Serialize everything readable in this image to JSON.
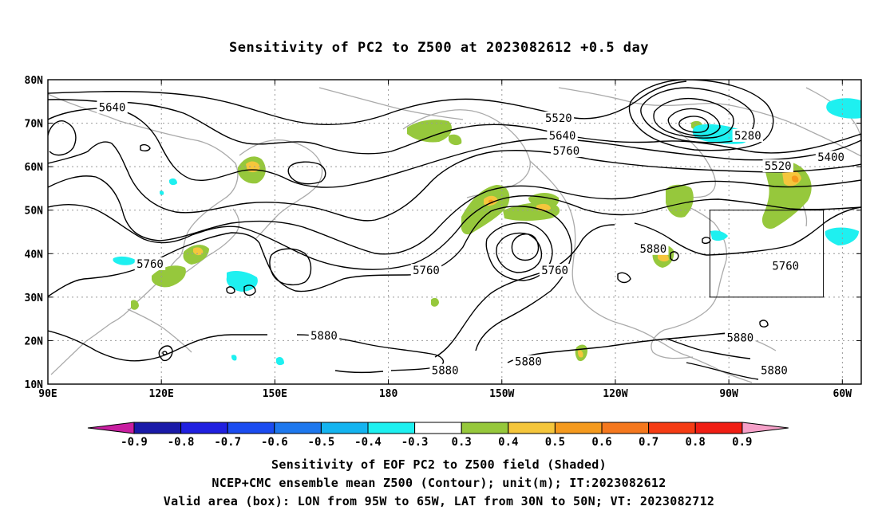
{
  "chart_data": {
    "type": "heatmap",
    "title": "Sensitivity of PC2 to Z500 at 2023082612 +0.5 day",
    "projection": "lat-lon",
    "lat_range": [
      10,
      80
    ],
    "lon_range": [
      90,
      305
    ],
    "lat_ticks": [
      {
        "value": 80,
        "label": "80N"
      },
      {
        "value": 70,
        "label": "70N"
      },
      {
        "value": 60,
        "label": "60N"
      },
      {
        "value": 50,
        "label": "50N"
      },
      {
        "value": 40,
        "label": "40N"
      },
      {
        "value": 30,
        "label": "30N"
      },
      {
        "value": 20,
        "label": "20N"
      },
      {
        "value": 10,
        "label": "10N"
      }
    ],
    "lon_ticks": [
      {
        "value": 90,
        "label": "90E"
      },
      {
        "value": 120,
        "label": "120E"
      },
      {
        "value": 150,
        "label": "150E"
      },
      {
        "value": 180,
        "label": "180"
      },
      {
        "value": 210,
        "label": "150W"
      },
      {
        "value": 240,
        "label": "120W"
      },
      {
        "value": 270,
        "label": "90W"
      },
      {
        "value": 300,
        "label": "60W"
      }
    ],
    "grid": true,
    "colorbar": {
      "labels": [
        "-0.9",
        "-0.8",
        "-0.7",
        "-0.6",
        "-0.5",
        "-0.4",
        "-0.3",
        "0.3",
        "0.4",
        "0.5",
        "0.6",
        "0.7",
        "0.8",
        "0.9"
      ],
      "colors": [
        "#1a1aa8",
        "#2020e0",
        "#1b4cf0",
        "#1e78ee",
        "#14b4f0",
        "#1ef0f0",
        "#ffffff",
        "#96c83c",
        "#f5c63c",
        "#f59a1e",
        "#f5781e",
        "#f53c14",
        "#f01e14"
      ],
      "under_color": "#c81ea0",
      "over_color": "#f5a0c8"
    },
    "contour_labels": [
      {
        "text": "5640",
        "lon": 107,
        "lat": 73.5
      },
      {
        "text": "5520",
        "lon": 225,
        "lat": 71
      },
      {
        "text": "5640",
        "lon": 226,
        "lat": 67
      },
      {
        "text": "5760",
        "lon": 227,
        "lat": 63.5
      },
      {
        "text": "5280",
        "lon": 275,
        "lat": 67
      },
      {
        "text": "5400",
        "lon": 297,
        "lat": 62
      },
      {
        "text": "5520",
        "lon": 283,
        "lat": 60
      },
      {
        "text": "5760",
        "lon": 117,
        "lat": 37.5
      },
      {
        "text": "5760",
        "lon": 190,
        "lat": 36
      },
      {
        "text": "5760",
        "lon": 224,
        "lat": 36
      },
      {
        "text": "5880",
        "lon": 250,
        "lat": 41
      },
      {
        "text": "5760",
        "lon": 285,
        "lat": 37
      },
      {
        "text": "5880",
        "lon": 163,
        "lat": 21
      },
      {
        "text": "5880",
        "lon": 195,
        "lat": 13
      },
      {
        "text": "5880",
        "lon": 217,
        "lat": 15
      },
      {
        "text": "5880",
        "lon": 273,
        "lat": 20.5
      },
      {
        "text": "5880",
        "lon": 282,
        "lat": 13
      }
    ],
    "valid_box": {
      "lon": [
        265,
        295
      ],
      "lat": [
        30,
        50
      ]
    }
  },
  "captions": {
    "line1": "Sensitivity of EOF PC2 to Z500 field (Shaded)",
    "line2": "NCEP+CMC ensemble mean Z500 (Contour); unit(m); IT:2023082612",
    "line3": "Valid area (box): LON from 95W to 65W, LAT from 30N to 50N; VT: 2023082712"
  }
}
